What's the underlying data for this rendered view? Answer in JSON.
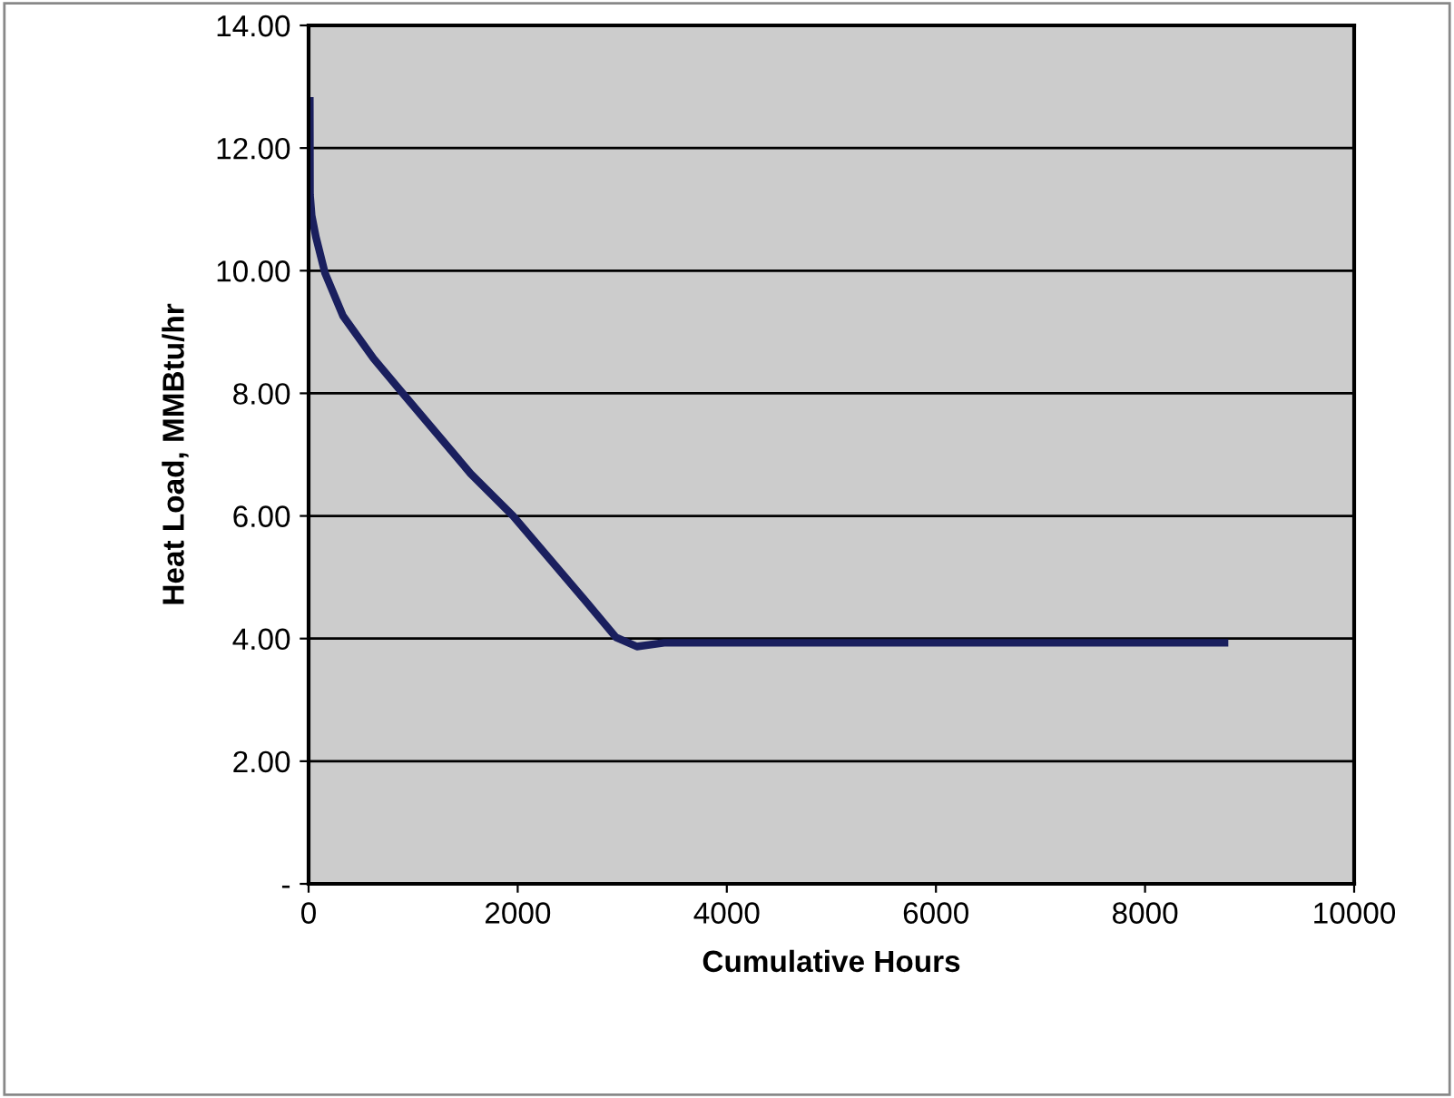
{
  "chart_data": {
    "type": "line",
    "xlabel": "Cumulative Hours",
    "ylabel": "Heat Load, MMBtu/hr",
    "series": [
      {
        "color": "#1a1f5e",
        "x": [
          12,
          14,
          30,
          70,
          157,
          330,
          620,
          910,
          1550,
          1955,
          2650,
          2940,
          3140,
          3400,
          4000,
          6000,
          8760
        ],
        "values": [
          12.77,
          11.24,
          10.9,
          10.55,
          9.96,
          9.26,
          8.57,
          7.98,
          6.69,
          6.0,
          4.61,
          4.02,
          3.87,
          3.93,
          3.93,
          3.93,
          3.93
        ]
      }
    ],
    "xlim": [
      0,
      10000
    ],
    "xticks": [
      0,
      2000,
      4000,
      6000,
      8000,
      10000
    ],
    "ylim": [
      0,
      14
    ],
    "yticks": [
      {
        "value": 0,
        "label": "-"
      },
      {
        "value": 2,
        "label": "2.00"
      },
      {
        "value": 4,
        "label": "4.00"
      },
      {
        "value": 6,
        "label": "6.00"
      },
      {
        "value": 8,
        "label": "8.00"
      },
      {
        "value": 10,
        "label": "10.00"
      },
      {
        "value": 12,
        "label": "12.00"
      },
      {
        "value": 14,
        "label": "14.00"
      }
    ],
    "grid": "y",
    "marker": "none",
    "line_style": "solid"
  }
}
